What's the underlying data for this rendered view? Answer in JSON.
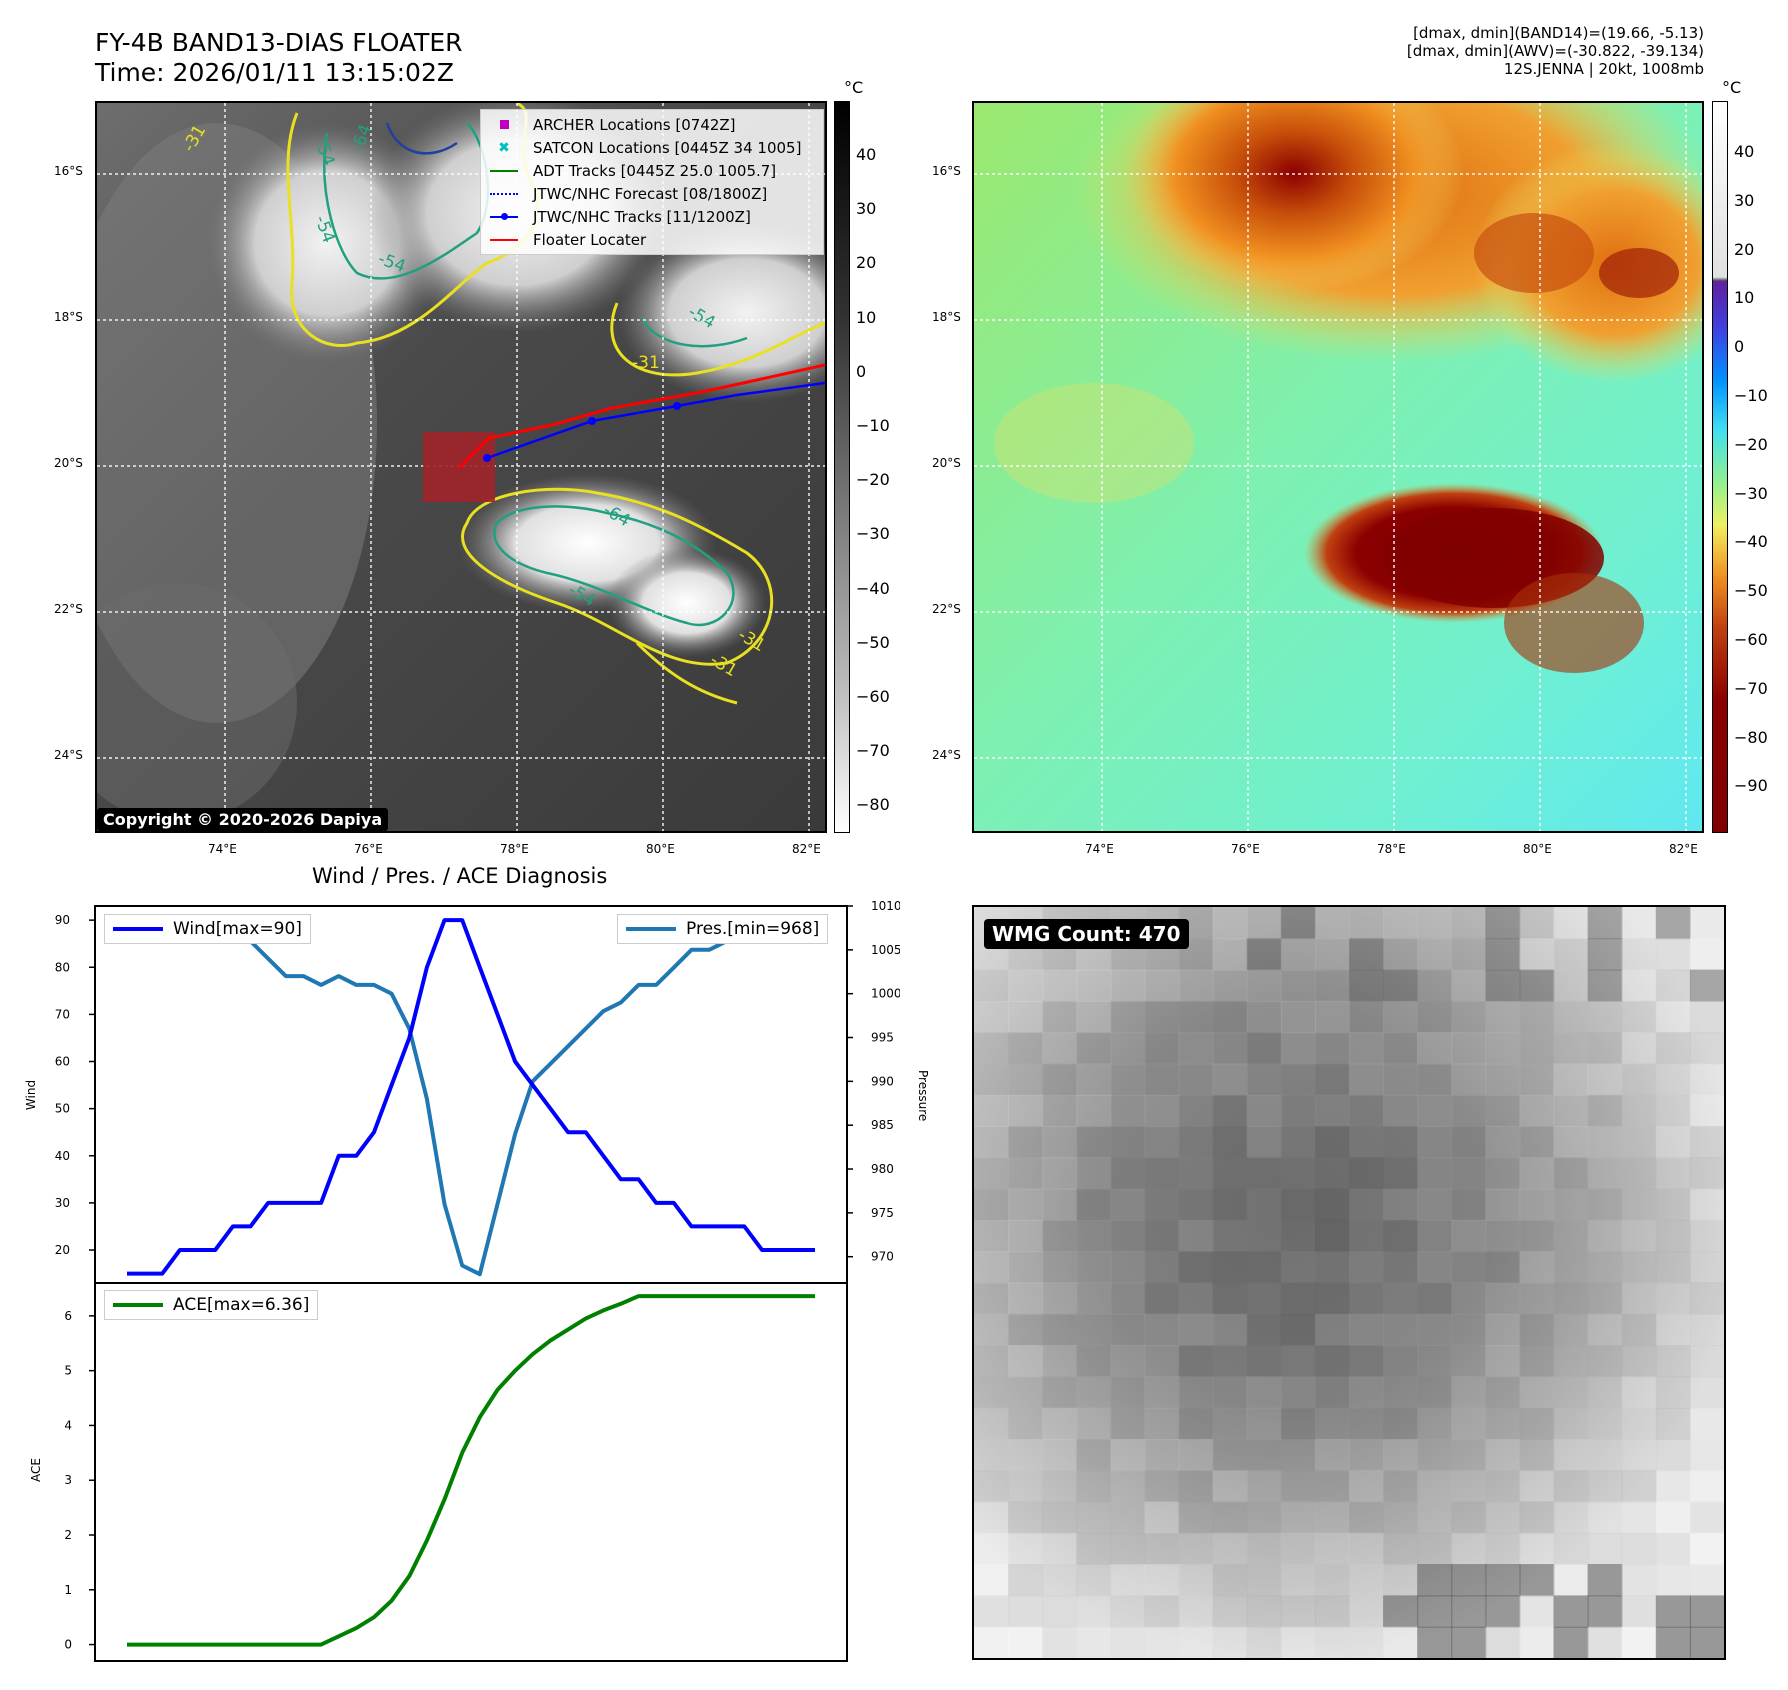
{
  "header": {
    "title_line1": "FY-4B BAND13-DIAS FLOATER",
    "title_line2": "Time: 2026/01/11 13:15:02Z",
    "info_line1": "[dmax, dmin](BAND14)=(19.66, -5.13)",
    "info_line2": "[dmax, dmin](AWV)=(-30.822, -39.134)",
    "info_line3": "12S.JENNA | 20kt, 1008mb"
  },
  "ir_panel": {
    "lat_labels": [
      "16°S",
      "18°S",
      "20°S",
      "22°S",
      "24°S"
    ],
    "lon_labels": [
      "74°E",
      "76°E",
      "78°E",
      "80°E",
      "82°E"
    ],
    "contour_labels": [
      "-31",
      "-54",
      "-64",
      "-54",
      "-54",
      "-31",
      "-54",
      "-31",
      "-64",
      "-54",
      "-31"
    ],
    "copyright": "Copyright © 2020-2026 Dapiya",
    "legend": [
      {
        "label": "ARCHER Locations [0742Z]",
        "icon": "square-marker",
        "color": "#c000c0"
      },
      {
        "label": "SATCON Locations [0445Z 34 1005]",
        "icon": "x-marker",
        "color": "#00bfbf"
      },
      {
        "label": "ADT Tracks [0445Z 25.0 1005.7]",
        "icon": "line",
        "color": "#008000"
      },
      {
        "label": "JTWC/NHC Forecast [08/1800Z]",
        "icon": "dotted-line",
        "color": "#0000ff"
      },
      {
        "label": "JTWC/NHC Tracks [11/1200Z]",
        "icon": "line-dot",
        "color": "#0000ff"
      },
      {
        "label": "Floater Locater",
        "icon": "line",
        "color": "#ff0000"
      }
    ],
    "colorbar_unit": "°C",
    "colorbar_ticks": [
      "40",
      "30",
      "20",
      "10",
      "0",
      "−10",
      "−20",
      "−30",
      "−40",
      "−50",
      "−60",
      "−70",
      "−80"
    ]
  },
  "awv_panel": {
    "lat_labels": [
      "16°S",
      "18°S",
      "20°S",
      "22°S",
      "24°S"
    ],
    "lon_labels": [
      "74°E",
      "76°E",
      "78°E",
      "80°E",
      "82°E"
    ],
    "colorbar_unit": "°C",
    "colorbar_ticks": [
      "40",
      "30",
      "20",
      "10",
      "0",
      "−10",
      "−20",
      "−30",
      "−40",
      "−50",
      "−60",
      "−70",
      "−80",
      "−90"
    ]
  },
  "diag_panel": {
    "title": "Wind / Pres. / ACE Diagnosis",
    "wind_ylabel": "Wind",
    "pres_ylabel": "Pressure",
    "ace_ylabel": "ACE",
    "wind_ticks": [
      "90",
      "80",
      "70",
      "60",
      "50",
      "40",
      "30",
      "20"
    ],
    "pres_ticks": [
      "1010",
      "1005",
      "1000",
      "995",
      "990",
      "985",
      "980",
      "975",
      "970"
    ],
    "ace_ticks": [
      "6",
      "5",
      "4",
      "3",
      "2",
      "1",
      "0"
    ],
    "wind_legend": "Wind[max=90]",
    "pres_legend": "Pres.[min=968]",
    "ace_legend": "ACE[max=6.36]",
    "colors": {
      "wind": "#0000ff",
      "pres": "#1f77b4",
      "ace": "#008000"
    }
  },
  "wmg_panel": {
    "badge": "WMG Count: 470"
  },
  "chart_data": [
    {
      "type": "line",
      "title": "Wind / Pres. / ACE Diagnosis",
      "ylabel": "Wind",
      "ylim": [
        13,
        93
      ],
      "series": [
        {
          "name": "Wind[max=90]",
          "values": [
            15,
            15,
            15,
            20,
            20,
            20,
            25,
            25,
            30,
            30,
            30,
            30,
            40,
            40,
            45,
            55,
            65,
            80,
            90,
            90,
            80,
            70,
            60,
            55,
            50,
            45,
            45,
            40,
            35,
            35,
            30,
            30,
            25,
            25,
            25,
            25,
            20,
            20,
            20,
            20
          ]
        }
      ]
    },
    {
      "type": "line",
      "ylabel": "Pressure",
      "ylim": [
        967,
        1010
      ],
      "series": [
        {
          "name": "Pres.[min=968]",
          "values": [
            1007,
            1007,
            1007,
            1007,
            1007,
            1007,
            1006,
            1006,
            1004,
            1002,
            1002,
            1001,
            1002,
            1001,
            1001,
            1000,
            996,
            988,
            976,
            969,
            968,
            976,
            984,
            990,
            992,
            994,
            996,
            998,
            999,
            1001,
            1001,
            1003,
            1005,
            1005,
            1006,
            1007,
            1007,
            1008,
            1008,
            1008
          ]
        }
      ]
    },
    {
      "type": "line",
      "ylabel": "ACE",
      "ylim": [
        -0.3,
        6.6
      ],
      "series": [
        {
          "name": "ACE[max=6.36]",
          "values": [
            0,
            0,
            0,
            0,
            0,
            0,
            0,
            0,
            0,
            0,
            0,
            0,
            0.15,
            0.3,
            0.5,
            0.8,
            1.25,
            1.9,
            2.65,
            3.5,
            4.15,
            4.65,
            5.0,
            5.3,
            5.55,
            5.75,
            5.95,
            6.1,
            6.22,
            6.36,
            6.36,
            6.36,
            6.36,
            6.36,
            6.36,
            6.36,
            6.36,
            6.36,
            6.36,
            6.36
          ]
        }
      ]
    }
  ]
}
